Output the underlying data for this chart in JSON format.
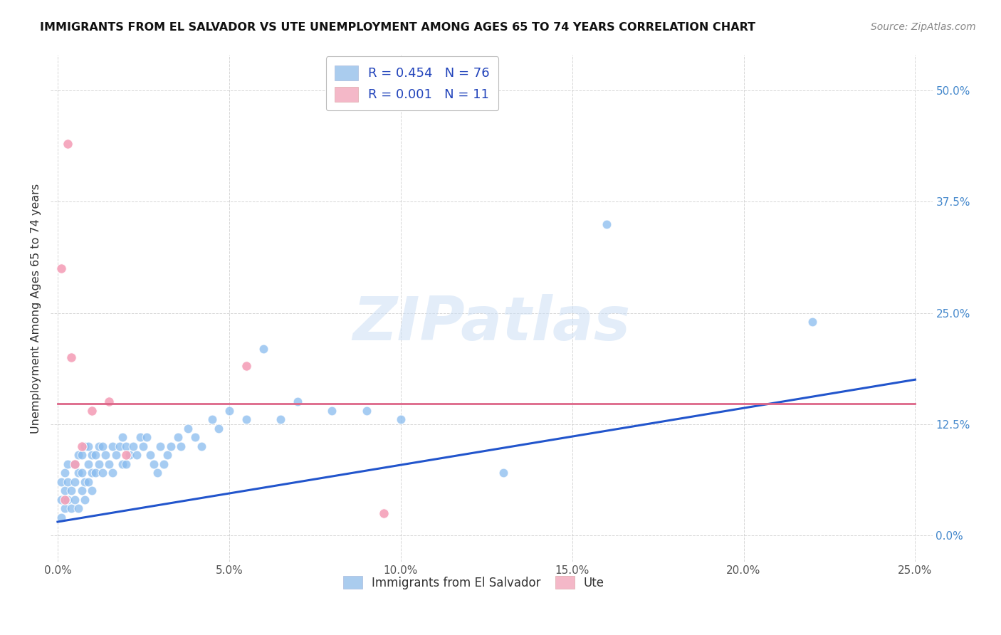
{
  "title": "IMMIGRANTS FROM EL SALVADOR VS UTE UNEMPLOYMENT AMONG AGES 65 TO 74 YEARS CORRELATION CHART",
  "source": "Source: ZipAtlas.com",
  "ylabel_left": "Unemployment Among Ages 65 to 74 years",
  "legend_entries_labels": [
    "R = 0.454   N = 76",
    "R = 0.001   N = 11"
  ],
  "legend_bottom": [
    "Immigrants from El Salvador",
    "Ute"
  ],
  "background_color": "#ffffff",
  "grid_color": "#cccccc",
  "watermark_text": "ZIPatlas",
  "blue_scatter_x": [
    0.001,
    0.001,
    0.001,
    0.002,
    0.002,
    0.002,
    0.003,
    0.003,
    0.003,
    0.004,
    0.004,
    0.005,
    0.005,
    0.005,
    0.006,
    0.006,
    0.006,
    0.007,
    0.007,
    0.007,
    0.008,
    0.008,
    0.008,
    0.009,
    0.009,
    0.009,
    0.01,
    0.01,
    0.01,
    0.011,
    0.011,
    0.012,
    0.012,
    0.013,
    0.013,
    0.014,
    0.015,
    0.016,
    0.016,
    0.017,
    0.018,
    0.019,
    0.019,
    0.02,
    0.02,
    0.021,
    0.022,
    0.023,
    0.024,
    0.025,
    0.026,
    0.027,
    0.028,
    0.029,
    0.03,
    0.031,
    0.032,
    0.033,
    0.035,
    0.036,
    0.038,
    0.04,
    0.042,
    0.045,
    0.047,
    0.05,
    0.055,
    0.06,
    0.065,
    0.07,
    0.08,
    0.09,
    0.1,
    0.13,
    0.16,
    0.22
  ],
  "blue_scatter_y": [
    0.02,
    0.04,
    0.06,
    0.03,
    0.05,
    0.07,
    0.04,
    0.06,
    0.08,
    0.03,
    0.05,
    0.04,
    0.06,
    0.08,
    0.03,
    0.07,
    0.09,
    0.05,
    0.07,
    0.09,
    0.04,
    0.06,
    0.1,
    0.06,
    0.08,
    0.1,
    0.05,
    0.07,
    0.09,
    0.07,
    0.09,
    0.08,
    0.1,
    0.07,
    0.1,
    0.09,
    0.08,
    0.07,
    0.1,
    0.09,
    0.1,
    0.08,
    0.11,
    0.08,
    0.1,
    0.09,
    0.1,
    0.09,
    0.11,
    0.1,
    0.11,
    0.09,
    0.08,
    0.07,
    0.1,
    0.08,
    0.09,
    0.1,
    0.11,
    0.1,
    0.12,
    0.11,
    0.1,
    0.13,
    0.12,
    0.14,
    0.13,
    0.21,
    0.13,
    0.15,
    0.14,
    0.14,
    0.13,
    0.07,
    0.35,
    0.24
  ],
  "pink_scatter_x": [
    0.001,
    0.002,
    0.003,
    0.004,
    0.005,
    0.007,
    0.01,
    0.015,
    0.02,
    0.055,
    0.095
  ],
  "pink_scatter_y": [
    0.3,
    0.04,
    0.44,
    0.2,
    0.08,
    0.1,
    0.14,
    0.15,
    0.09,
    0.19,
    0.025
  ],
  "blue_line_x": [
    0.0,
    0.25
  ],
  "blue_line_y": [
    0.015,
    0.175
  ],
  "pink_line_x": [
    0.0,
    0.25
  ],
  "pink_line_y": [
    0.148,
    0.148
  ],
  "xlim": [
    -0.002,
    0.255
  ],
  "ylim": [
    -0.03,
    0.54
  ],
  "yticks": [
    0.0,
    0.125,
    0.25,
    0.375,
    0.5
  ],
  "ytick_labels_right": [
    "0.0%",
    "12.5%",
    "25.0%",
    "37.5%",
    "50.0%"
  ],
  "xticks": [
    0.0,
    0.05,
    0.1,
    0.15,
    0.2,
    0.25
  ],
  "xtick_labels": [
    "0.0%",
    "5.0%",
    "10.0%",
    "15.0%",
    "20.0%",
    "25.0%"
  ],
  "blue_scatter_color": "#88bbee",
  "pink_scatter_color": "#f4a0b8",
  "blue_line_color": "#2255cc",
  "pink_line_color": "#dd6688",
  "legend_patch_blue": "#aaccee",
  "legend_patch_pink": "#f4b8c8",
  "right_axis_color": "#4488cc",
  "title_color": "#111111",
  "source_color": "#888888",
  "ylabel_color": "#333333"
}
